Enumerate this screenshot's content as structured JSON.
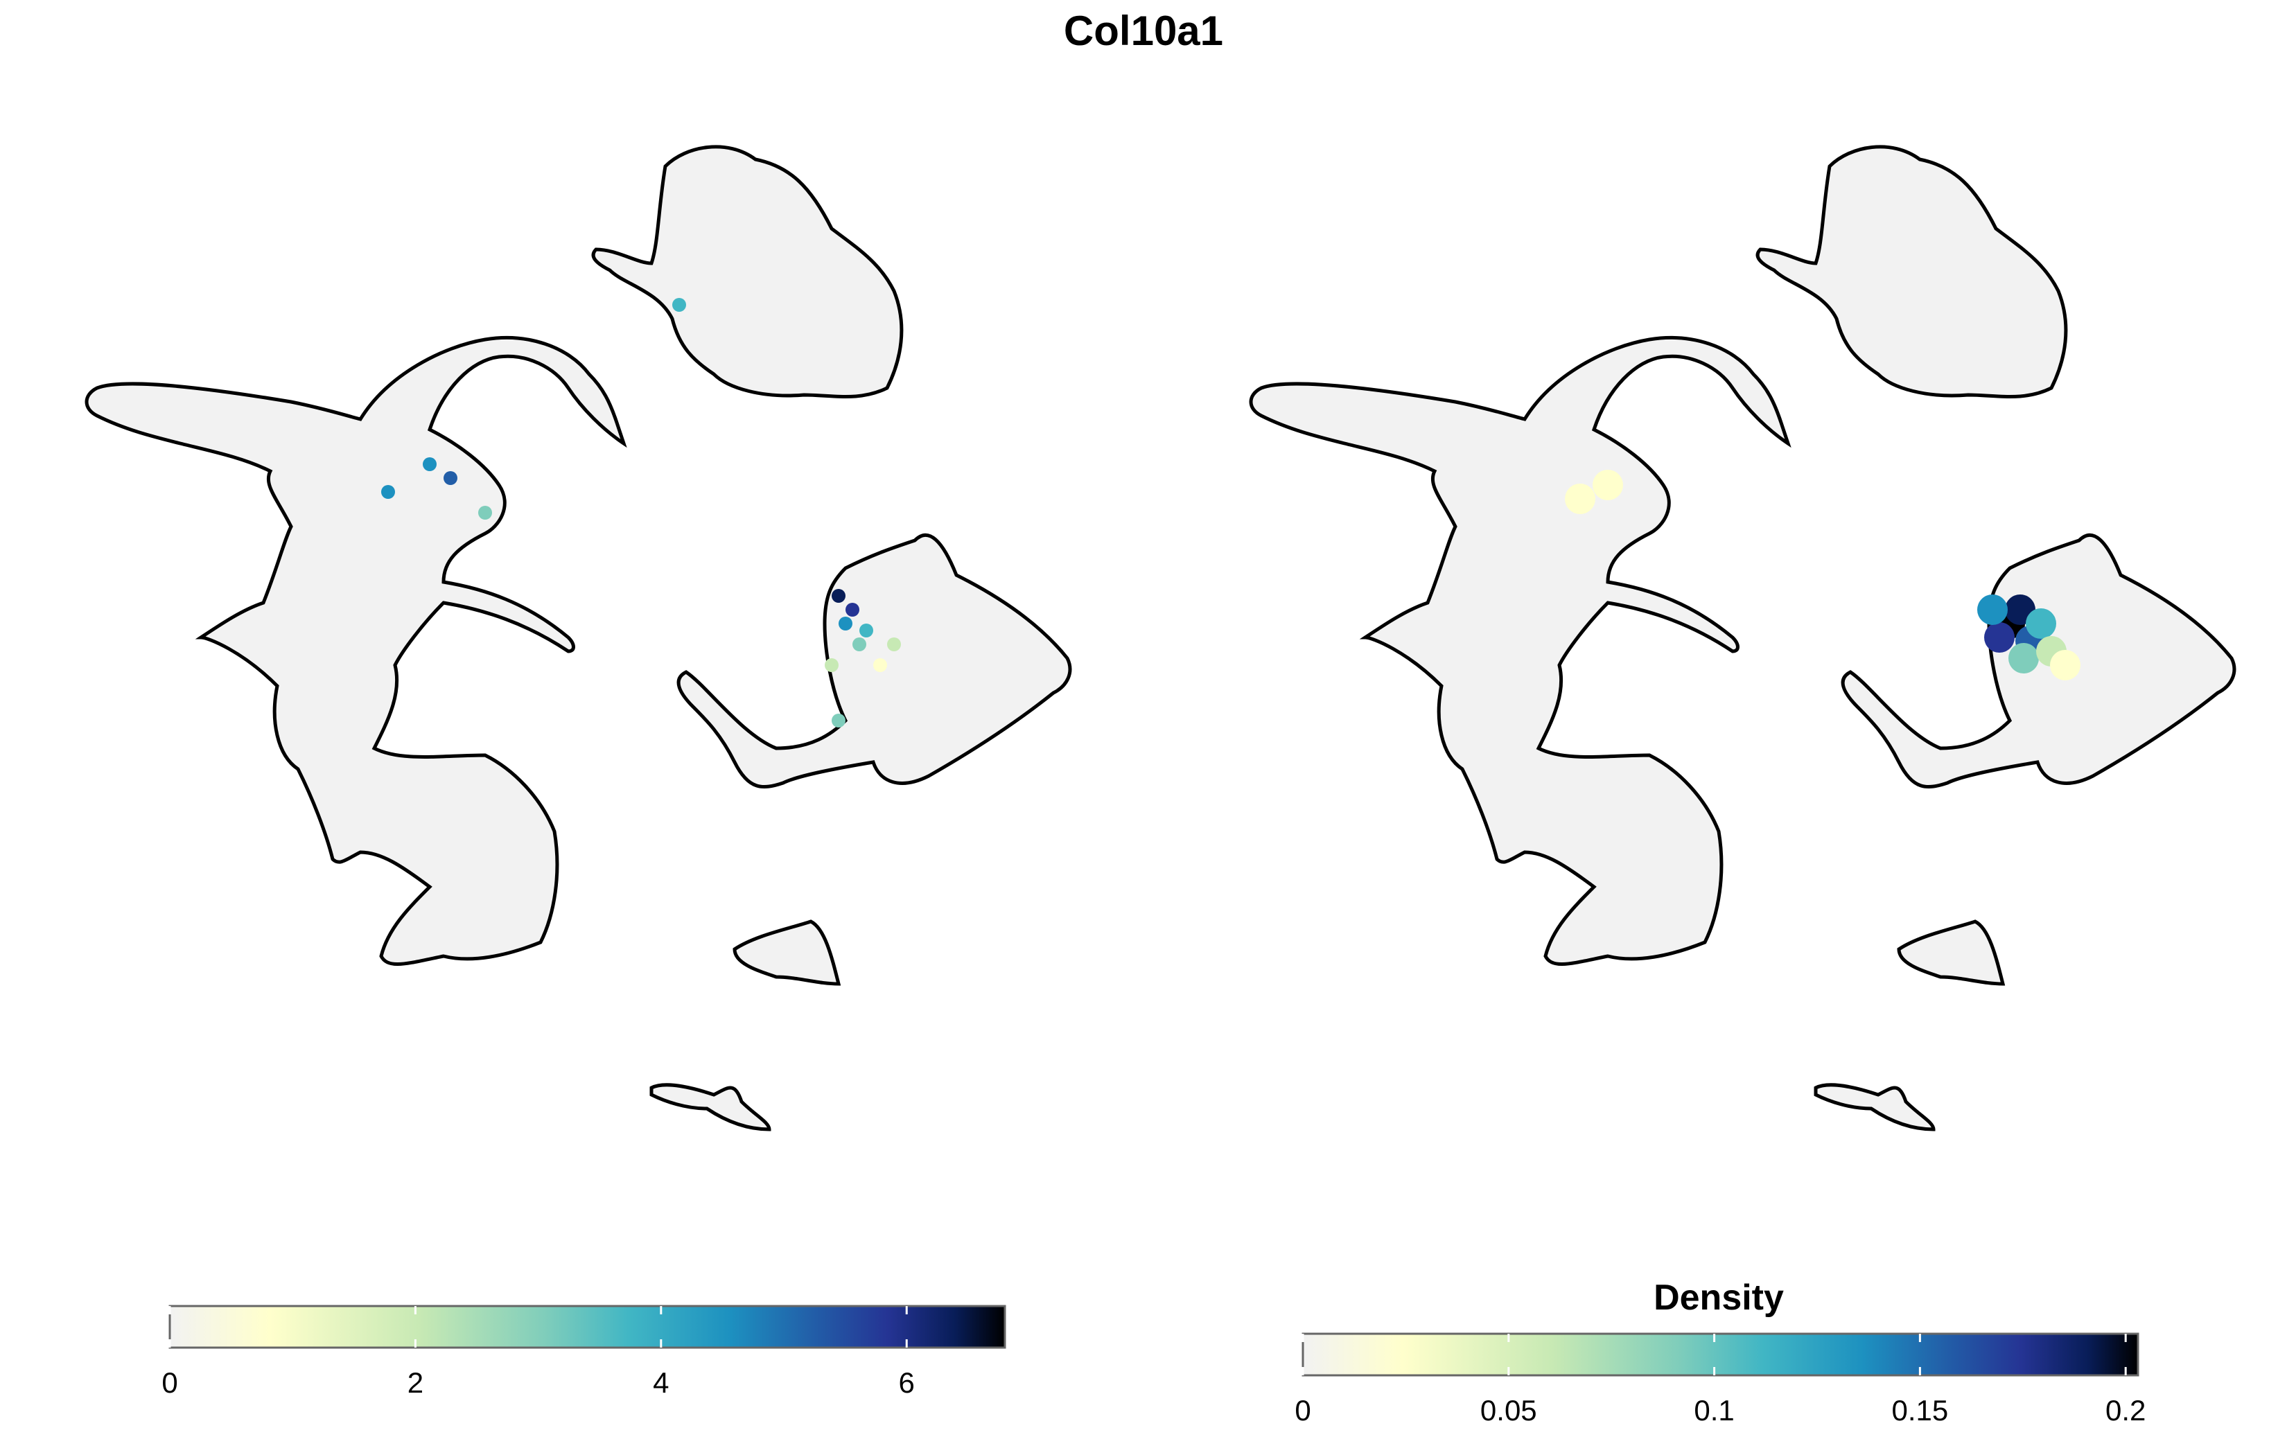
{
  "title": "Col10a1",
  "chart_data": [
    {
      "type": "scatter",
      "panel": "expression",
      "description_visible": "UMAP feature plot of Col10a1 expression; cells outlined in black, highest expression in cluster right-center",
      "legend": {
        "title": "",
        "ticks": [
          "0",
          "2",
          "4",
          "6"
        ],
        "tick_values": [
          0,
          2,
          4,
          6
        ],
        "range": [
          0,
          6.8
        ],
        "colors": [
          "#f2f2f2",
          "#ffffcc",
          "#c7e9b4",
          "#7fcdbb",
          "#41b6c4",
          "#1d91c0",
          "#225ea8",
          "#253494",
          "#081d58",
          "#000000"
        ]
      }
    },
    {
      "type": "scatter",
      "panel": "density",
      "legend": {
        "title": "Density",
        "ticks": [
          "0",
          "0.05",
          "0.1",
          "0.15",
          "0.2"
        ],
        "tick_values": [
          0,
          0.05,
          0.1,
          0.15,
          0.2
        ],
        "range": [
          0,
          0.203
        ],
        "colors": [
          "#f2f2f2",
          "#ffffcc",
          "#c7e9b4",
          "#7fcdbb",
          "#41b6c4",
          "#1d91c0",
          "#225ea8",
          "#253494",
          "#081d58",
          "#000000"
        ]
      }
    }
  ]
}
